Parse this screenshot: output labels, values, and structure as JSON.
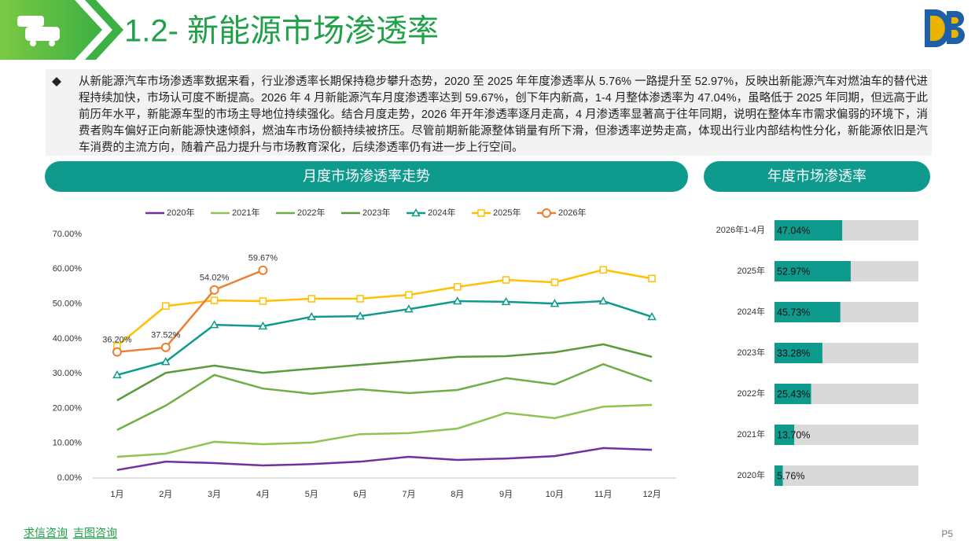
{
  "header": {
    "title": "1.2- 新能源市场渗透率"
  },
  "summary": "从新能源汽车市场渗透率数据来看，行业渗透率长期保持稳步攀升态势，2020 至 2025 年年度渗透率从 5.76% 一路提升至 52.97%，反映出新能源汽车对燃油车的替代进程持续加快，市场认可度不断提高。2026 年 4 月新能源汽车月度渗透率达到 59.67%，创下年内新高，1-4 月整体渗透率为 47.04%，虽略低于 2025 年同期，但远高于此前历年水平，新能源车型的市场主导地位持续强化。结合月度走势，2026 年开年渗透率逐月走高，4 月渗透率显著高于往年同期，说明在整体车市需求偏弱的环境下，消费者购车偏好正向新能源快速倾斜，燃油车市场份额持续被挤压。尽管前期新能源整体销量有所下滑，但渗透率逆势走高，体现出行业内部结构性分化，新能源依旧是汽车消费的主流方向，随着产品力提升与市场教育深化，后续渗透率仍有进一步上行空间。",
  "chart_data": [
    {
      "type": "line",
      "title": "月度市场渗透率走势",
      "categories": [
        "1月",
        "2月",
        "3月",
        "4月",
        "5月",
        "6月",
        "7月",
        "8月",
        "9月",
        "10月",
        "11月",
        "12月"
      ],
      "ylim": [
        0,
        70
      ],
      "yticks": [
        {
          "value": 0,
          "label": "0.00%"
        },
        {
          "value": 10,
          "label": "10.00%"
        },
        {
          "value": 20,
          "label": "20.00%"
        },
        {
          "value": 30,
          "label": "30.00%"
        },
        {
          "value": 40,
          "label": "40.00%"
        },
        {
          "value": 50,
          "label": "50.00%"
        },
        {
          "value": 60,
          "label": "60.00%"
        },
        {
          "value": 70,
          "label": "70.00%"
        }
      ],
      "legend": "top",
      "series": [
        {
          "name": "2020年",
          "color": "#7030a0",
          "values": [
            2.3,
            4.7,
            4.3,
            3.6,
            4.0,
            4.7,
            6.1,
            5.2,
            5.6,
            6.3,
            8.6,
            8.1
          ]
        },
        {
          "name": "2021年",
          "color": "#8dc453",
          "values": [
            6.1,
            7.0,
            10.4,
            9.7,
            10.2,
            12.6,
            12.9,
            14.2,
            18.7,
            17.2,
            20.5,
            21.0
          ]
        },
        {
          "name": "2022年",
          "color": "#6fae45",
          "values": [
            13.8,
            20.8,
            29.6,
            25.7,
            24.2,
            25.5,
            24.4,
            25.3,
            28.7,
            26.9,
            32.7,
            27.8
          ]
        },
        {
          "name": "2023年",
          "color": "#5b9a3b",
          "values": [
            22.3,
            30.2,
            32.3,
            30.2,
            31.4,
            32.5,
            33.6,
            34.8,
            35.0,
            36.1,
            38.4,
            34.8
          ]
        },
        {
          "name": "2024年",
          "color": "#0f9a8e",
          "marker": "triangle",
          "values": [
            29.6,
            33.4,
            44.0,
            43.6,
            46.3,
            46.5,
            48.5,
            50.8,
            50.6,
            50.1,
            50.8,
            46.3
          ]
        },
        {
          "name": "2025年",
          "color": "#ffc000",
          "marker": "square",
          "values": [
            37.9,
            49.4,
            51.0,
            50.8,
            51.5,
            51.5,
            52.6,
            54.9,
            56.9,
            56.2,
            59.8,
            57.3
          ]
        },
        {
          "name": "2026年",
          "color": "#ed7d31",
          "marker": "circle",
          "values": [
            36.2,
            37.52,
            54.02,
            59.67,
            null,
            null,
            null,
            null,
            null,
            null,
            null,
            null
          ],
          "value_labels": [
            "36.20%",
            "37.52%",
            "54.02%",
            "59.67%",
            null,
            null,
            null,
            null,
            null,
            null,
            null,
            null
          ]
        }
      ]
    },
    {
      "type": "barh",
      "title": "年度市场渗透率",
      "categories": [
        "2026年1-4月",
        "2025年",
        "2024年",
        "2023年",
        "2022年",
        "2021年",
        "2020年"
      ],
      "values": [
        47.04,
        52.97,
        45.73,
        33.28,
        25.43,
        13.7,
        5.76
      ],
      "value_labels": [
        "47.04%",
        "52.97%",
        "45.73%",
        "33.28%",
        "25.43%",
        "13.70%",
        "5.76%"
      ],
      "xlim": [
        0,
        100
      ],
      "color": "#0f9a8e",
      "track_color": "#d9d9d9"
    }
  ],
  "footer": {
    "brands": [
      "求信咨询",
      "吉图咨询"
    ],
    "page": "P5"
  }
}
